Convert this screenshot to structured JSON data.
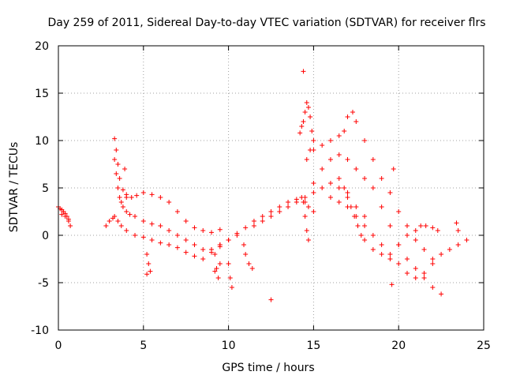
{
  "chart_data": {
    "type": "scatter",
    "title": "Day 259 of 2011, Sidereal Day-to-day VTEC variation (SDTVAR) for receiver flrs",
    "xlabel": "GPS time / hours",
    "ylabel": "SDTVAR / TECUs",
    "xlim": [
      0,
      25
    ],
    "ylim": [
      -10,
      20
    ],
    "xticks": [
      0,
      5,
      10,
      15,
      20,
      25
    ],
    "yticks": [
      -10,
      -5,
      0,
      5,
      10,
      15,
      20
    ],
    "grid": true,
    "marker": "+",
    "color": "#ff0000",
    "series": [
      {
        "name": "SDTVAR",
        "x": [
          0.0,
          0.1,
          0.2,
          0.3,
          0.4,
          0.5,
          0.6,
          0.7,
          0.2,
          0.4,
          0.6,
          2.8,
          3.0,
          3.2,
          3.3,
          3.4,
          3.5,
          3.6,
          3.8,
          4.0,
          4.3,
          4.6,
          5.0,
          5.5,
          6.0,
          6.5,
          7.0,
          7.5,
          8.0,
          8.5,
          9.0,
          9.5,
          3.3,
          3.4,
          3.5,
          3.6,
          3.7,
          3.8,
          4.0,
          4.2,
          4.5,
          5.0,
          5.5,
          6.0,
          6.5,
          7.0,
          7.5,
          8.0,
          8.5,
          9.0,
          9.5,
          10.0,
          3.3,
          3.5,
          3.7,
          4.0,
          4.5,
          5.0,
          5.5,
          6.0,
          6.5,
          7.0,
          7.5,
          8.0,
          8.5,
          9.0,
          9.5,
          10.0,
          10.5,
          3.9,
          5.2,
          5.3,
          5.4,
          9.2,
          9.3,
          9.4,
          9.5,
          10.0,
          10.1,
          10.2,
          10.9,
          11.0,
          11.2,
          11.4,
          9.0,
          9.5,
          10.0,
          10.5,
          11.0,
          11.5,
          12.0,
          12.5,
          13.0,
          13.5,
          14.0,
          14.3,
          14.5,
          14.7,
          15.0,
          11.5,
          12.0,
          12.5,
          13.0,
          13.5,
          14.0,
          14.5,
          15.0,
          15.5,
          16.0,
          16.5,
          17.0,
          17.5,
          18.0,
          14.2,
          14.3,
          14.4,
          14.5,
          14.6,
          14.7,
          14.8,
          14.9,
          15.0,
          14.8,
          14.6,
          14.4,
          14.5,
          14.6,
          14.7,
          15.0,
          15.5,
          16.0,
          16.5,
          17.0,
          17.5,
          18.0,
          18.5,
          19.0,
          19.5,
          20.0,
          20.5,
          21.0,
          21.5,
          22.0,
          22.5,
          15.0,
          15.5,
          16.0,
          16.5,
          16.8,
          17.0,
          17.3,
          17.5,
          18.0,
          18.5,
          19.0,
          19.5,
          20.0,
          20.5,
          21.0,
          21.5,
          22.0,
          22.5,
          23.0,
          23.5,
          24.0,
          16.0,
          16.5,
          17.0,
          17.5,
          18.0,
          18.5,
          19.0,
          19.5,
          20.0,
          20.5,
          21.0,
          21.5,
          22.0,
          16.5,
          16.8,
          17.0,
          17.2,
          17.4,
          17.6,
          17.8,
          18.0,
          18.5,
          19.0,
          19.5,
          20.0,
          20.5,
          21.0,
          21.3,
          21.6,
          22.0,
          22.3,
          14.4,
          12.5,
          19.6,
          19.7,
          4.0,
          23.4,
          23.5,
          9.2,
          5.2
        ],
        "y": [
          3.0,
          2.8,
          2.7,
          2.5,
          2.3,
          2.0,
          1.5,
          1.0,
          2.2,
          2.0,
          1.7,
          1.0,
          1.5,
          1.8,
          10.2,
          9.0,
          7.5,
          6.0,
          4.8,
          4.3,
          4.0,
          4.2,
          4.5,
          4.3,
          4.0,
          3.5,
          2.5,
          1.5,
          0.8,
          0.5,
          0.3,
          0.6,
          8.0,
          6.5,
          5.0,
          4.0,
          3.5,
          3.0,
          2.5,
          2.2,
          2.0,
          1.5,
          1.2,
          1.0,
          0.5,
          0.0,
          -0.5,
          -1.0,
          -1.5,
          -1.8,
          -1.2,
          -0.5,
          2.0,
          1.5,
          1.0,
          0.5,
          0.0,
          -0.2,
          -0.5,
          -0.8,
          -1.0,
          -1.3,
          -1.8,
          -2.2,
          -2.5,
          -1.5,
          -1.0,
          -0.5,
          0.0,
          7.0,
          -2.0,
          -3.0,
          -3.8,
          -2.0,
          -3.5,
          -4.5,
          -3.0,
          -3.0,
          -4.5,
          -5.5,
          -1.0,
          -2.0,
          -3.0,
          -3.5,
          -1.5,
          -1.0,
          -0.5,
          0.2,
          0.8,
          1.5,
          2.0,
          2.5,
          3.0,
          3.5,
          3.8,
          4.0,
          3.5,
          3.0,
          2.5,
          1.0,
          1.5,
          2.0,
          2.5,
          3.0,
          3.5,
          4.0,
          4.5,
          5.0,
          5.5,
          5.0,
          4.5,
          3.0,
          2.0,
          10.8,
          11.5,
          12.0,
          13.0,
          14.0,
          13.5,
          12.5,
          11.0,
          10.0,
          9.0,
          8.0,
          3.5,
          2.0,
          0.5,
          -0.5,
          5.5,
          7.0,
          8.0,
          8.5,
          8.0,
          7.0,
          6.0,
          5.0,
          3.0,
          1.0,
          -1.0,
          -2.5,
          -3.5,
          -4.5,
          -5.5,
          -6.2,
          9.0,
          9.5,
          10.0,
          10.5,
          11.0,
          12.5,
          13.0,
          12.0,
          10.0,
          8.0,
          6.0,
          4.5,
          2.5,
          1.0,
          -0.5,
          -1.5,
          -2.5,
          -2.0,
          -1.5,
          -1.0,
          -0.5,
          4.0,
          3.5,
          3.0,
          2.0,
          1.0,
          0.0,
          -1.0,
          -2.0,
          -3.0,
          -4.0,
          -4.5,
          -4.0,
          -3.0,
          6.0,
          5.0,
          4.0,
          3.0,
          2.0,
          1.0,
          0.0,
          -0.5,
          -1.5,
          -2.0,
          -2.5,
          -1.0,
          0.0,
          0.5,
          1.0,
          1.0,
          0.8,
          0.5,
          17.3,
          -6.8,
          -5.2,
          7.0,
          4.0,
          1.3,
          0.5,
          -3.8,
          -4.1
        ]
      }
    ]
  }
}
